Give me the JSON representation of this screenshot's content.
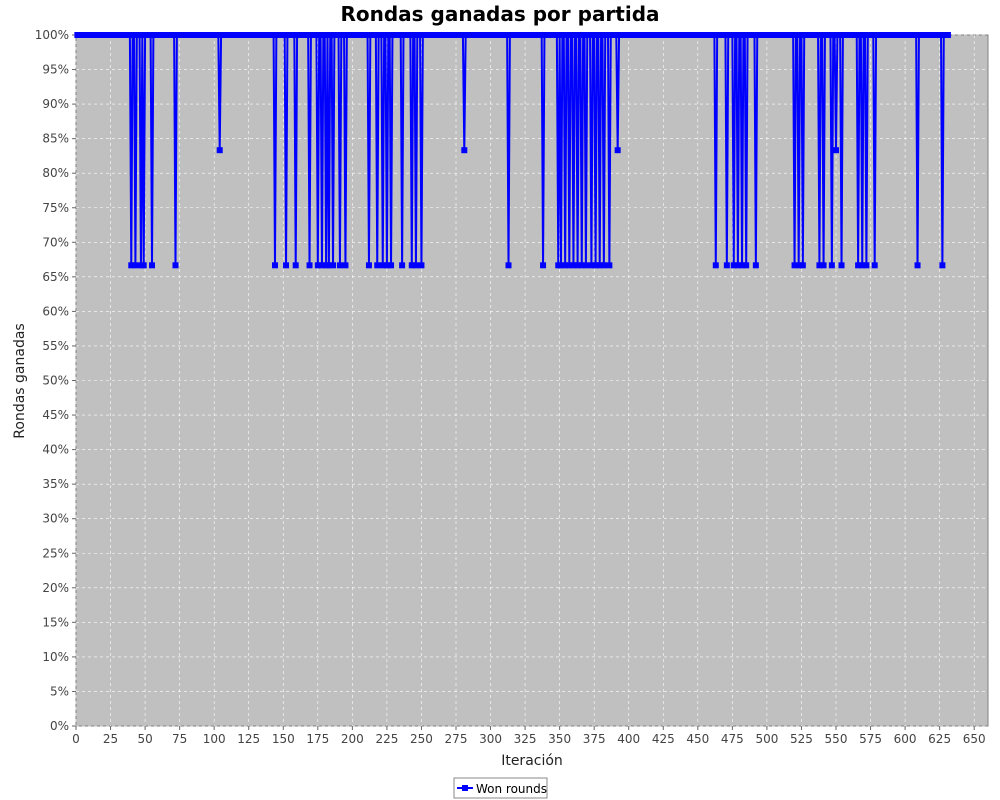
{
  "chart_data": {
    "type": "line",
    "title": "Rondas ganadas por partida",
    "xlabel": "Iteración",
    "ylabel": "Rondas ganadas",
    "xlim": [
      0,
      660
    ],
    "ylim": [
      0,
      100
    ],
    "x_ticks": [
      0,
      25,
      50,
      75,
      100,
      125,
      150,
      175,
      200,
      225,
      250,
      275,
      300,
      325,
      350,
      375,
      400,
      425,
      450,
      475,
      500,
      525,
      550,
      575,
      600,
      625,
      650
    ],
    "y_ticks": [
      0,
      5,
      10,
      15,
      20,
      25,
      30,
      35,
      40,
      45,
      50,
      55,
      60,
      65,
      70,
      75,
      80,
      85,
      90,
      95,
      100
    ],
    "y_tick_suffix": "%",
    "grid": true,
    "legend_position": "bottom-center",
    "colors": {
      "series": "#0000ff",
      "plot_background": "#c0c0c0",
      "grid": "#ffffff"
    },
    "series": [
      {
        "name": "Won rounds",
        "marker": "square",
        "x_range": [
          1,
          631
        ],
        "base_value": 100,
        "dips": [
          {
            "x": 40,
            "y": 66.67
          },
          {
            "x": 43,
            "y": 66.67
          },
          {
            "x": 47,
            "y": 66.67
          },
          {
            "x": 49,
            "y": 66.67
          },
          {
            "x": 55,
            "y": 66.67
          },
          {
            "x": 72,
            "y": 66.67
          },
          {
            "x": 104,
            "y": 83.33
          },
          {
            "x": 144,
            "y": 66.67
          },
          {
            "x": 152,
            "y": 66.67
          },
          {
            "x": 159,
            "y": 66.67
          },
          {
            "x": 169,
            "y": 66.67
          },
          {
            "x": 175,
            "y": 66.67
          },
          {
            "x": 178,
            "y": 66.67
          },
          {
            "x": 181,
            "y": 66.67
          },
          {
            "x": 183,
            "y": 66.67
          },
          {
            "x": 186,
            "y": 66.67
          },
          {
            "x": 191,
            "y": 66.67
          },
          {
            "x": 195,
            "y": 66.67
          },
          {
            "x": 212,
            "y": 66.67
          },
          {
            "x": 218,
            "y": 66.67
          },
          {
            "x": 222,
            "y": 66.67
          },
          {
            "x": 225,
            "y": 66.67
          },
          {
            "x": 228,
            "y": 66.67
          },
          {
            "x": 236,
            "y": 66.67
          },
          {
            "x": 243,
            "y": 66.67
          },
          {
            "x": 246,
            "y": 66.67
          },
          {
            "x": 250,
            "y": 66.67
          },
          {
            "x": 281,
            "y": 83.33
          },
          {
            "x": 313,
            "y": 66.67
          },
          {
            "x": 338,
            "y": 66.67
          },
          {
            "x": 349,
            "y": 66.67
          },
          {
            "x": 351,
            "y": 66.67
          },
          {
            "x": 354,
            "y": 66.67
          },
          {
            "x": 357,
            "y": 66.67
          },
          {
            "x": 360,
            "y": 66.67
          },
          {
            "x": 363,
            "y": 66.67
          },
          {
            "x": 366,
            "y": 66.67
          },
          {
            "x": 369,
            "y": 66.67
          },
          {
            "x": 373,
            "y": 66.67
          },
          {
            "x": 376,
            "y": 66.67
          },
          {
            "x": 379,
            "y": 66.67
          },
          {
            "x": 382,
            "y": 66.67
          },
          {
            "x": 386,
            "y": 66.67
          },
          {
            "x": 392,
            "y": 83.33
          },
          {
            "x": 463,
            "y": 66.67
          },
          {
            "x": 471,
            "y": 66.67
          },
          {
            "x": 476,
            "y": 66.67
          },
          {
            "x": 479,
            "y": 66.67
          },
          {
            "x": 482,
            "y": 66.67
          },
          {
            "x": 485,
            "y": 66.67
          },
          {
            "x": 492,
            "y": 66.67
          },
          {
            "x": 520,
            "y": 66.67
          },
          {
            "x": 523,
            "y": 66.67
          },
          {
            "x": 526,
            "y": 66.67
          },
          {
            "x": 538,
            "y": 66.67
          },
          {
            "x": 541,
            "y": 66.67
          },
          {
            "x": 547,
            "y": 66.67
          },
          {
            "x": 550,
            "y": 83.33
          },
          {
            "x": 554,
            "y": 66.67
          },
          {
            "x": 566,
            "y": 66.67
          },
          {
            "x": 569,
            "y": 66.67
          },
          {
            "x": 572,
            "y": 66.67
          },
          {
            "x": 578,
            "y": 66.67
          },
          {
            "x": 609,
            "y": 66.67
          },
          {
            "x": 627,
            "y": 66.67
          }
        ]
      }
    ]
  }
}
